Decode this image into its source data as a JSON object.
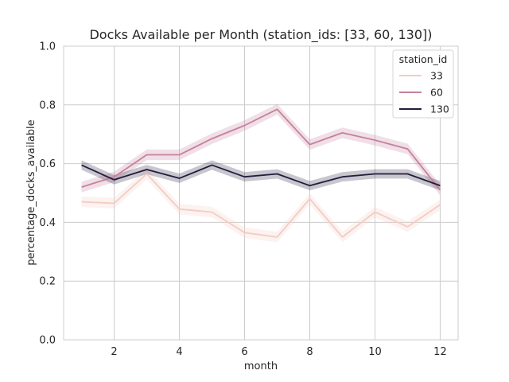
{
  "chart_data": {
    "type": "line",
    "title": "Docks Available per Month (station_ids: [33, 60, 130])",
    "xlabel": "month",
    "ylabel": "percentage_docks_available",
    "xlim": [
      0.45,
      12.55
    ],
    "ylim": [
      0.0,
      1.0
    ],
    "xticks": [
      2,
      4,
      6,
      8,
      10,
      12
    ],
    "xtick_labels": [
      "2",
      "4",
      "6",
      "8",
      "10",
      "12"
    ],
    "yticks": [
      0.0,
      0.2,
      0.4,
      0.6,
      0.8,
      1.0
    ],
    "ytick_labels": [
      "0.0",
      "0.2",
      "0.4",
      "0.6",
      "0.8",
      "1.0"
    ],
    "grid": true,
    "legend": {
      "title": "station_id",
      "placement": "top-right"
    },
    "x": [
      1,
      2,
      3,
      4,
      5,
      6,
      7,
      8,
      9,
      10,
      11,
      12
    ],
    "series": [
      {
        "name": "33",
        "color": "#f2ccc4",
        "values": [
          0.47,
          0.465,
          0.565,
          0.445,
          0.435,
          0.365,
          0.35,
          0.48,
          0.35,
          0.435,
          0.385,
          0.46
        ],
        "ci_half_width": 0.018
      },
      {
        "name": "60",
        "color": "#c5819c",
        "values": [
          0.52,
          0.555,
          0.63,
          0.63,
          0.685,
          0.73,
          0.785,
          0.665,
          0.705,
          0.68,
          0.65,
          0.51
        ],
        "ci_half_width": 0.018
      },
      {
        "name": "130",
        "color": "#241c3c",
        "values": [
          0.595,
          0.545,
          0.58,
          0.55,
          0.595,
          0.555,
          0.565,
          0.525,
          0.555,
          0.565,
          0.565,
          0.525
        ],
        "ci_half_width": 0.016
      }
    ]
  }
}
